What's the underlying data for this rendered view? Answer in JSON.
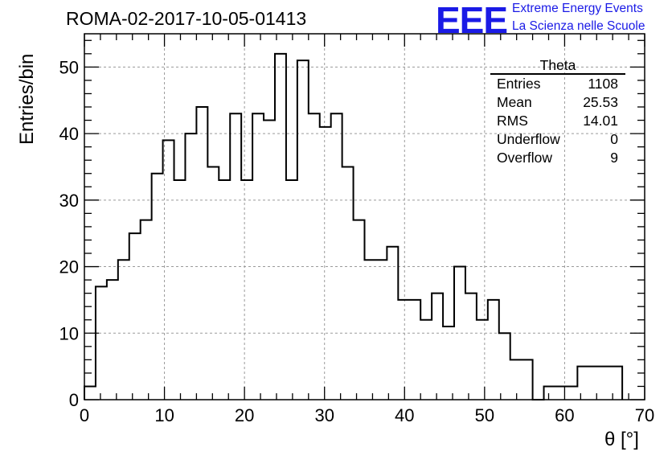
{
  "header": {
    "run_title": "ROMA-02-2017-10-05-01413",
    "logo_text": "EEE",
    "logo_line1": "Extreme Energy Events",
    "logo_line2": "La Scienza nelle Scuole"
  },
  "stats_box": {
    "title": "Theta",
    "rows": [
      {
        "label": "Entries",
        "value": "1108"
      },
      {
        "label": "Mean",
        "value": "25.53"
      },
      {
        "label": "RMS",
        "value": "14.01"
      },
      {
        "label": "Underflow",
        "value": "0"
      },
      {
        "label": "Overflow",
        "value": "9"
      }
    ]
  },
  "colors": {
    "logo": "#1a1ae6",
    "line": "#000000",
    "grid": "#9a9a9a"
  },
  "chart_data": {
    "type": "histogram",
    "title": "ROMA-02-2017-10-05-01413",
    "xlabel": "θ [°]",
    "ylabel": "Entries/bin",
    "xlim": [
      0,
      70
    ],
    "ylim": [
      0,
      55
    ],
    "grid": true,
    "x_ticks": [
      0,
      10,
      20,
      30,
      40,
      50,
      60,
      70
    ],
    "y_ticks": [
      0,
      10,
      20,
      30,
      40,
      50
    ],
    "bin_edges": [
      0,
      1.4,
      2.8,
      4.2,
      5.6,
      7,
      8.4,
      9.8,
      11.2,
      12.6,
      14,
      15.4,
      16.8,
      18.2,
      19.6,
      21,
      22.4,
      23.8,
      25.2,
      26.6,
      28,
      29.4,
      30.8,
      32.2,
      33.6,
      35,
      36.4,
      37.8,
      39.2,
      40.6,
      42,
      43.4,
      44.8,
      46.2,
      47.6,
      49,
      50.4,
      51.8,
      53.2,
      54.6,
      56,
      57.4,
      58.8,
      60.2,
      61.6,
      63,
      64.4,
      65.8,
      67.2
    ],
    "counts": [
      2,
      17,
      18,
      21,
      25,
      27,
      34,
      39,
      33,
      40,
      44,
      35,
      33,
      43,
      33,
      43,
      42,
      52,
      33,
      51,
      43,
      41,
      43,
      35,
      27,
      21,
      21,
      23,
      15,
      15,
      12,
      16,
      11,
      20,
      16,
      12,
      15,
      10,
      6,
      6,
      0,
      2,
      2,
      2,
      5,
      5,
      5,
      5
    ]
  }
}
